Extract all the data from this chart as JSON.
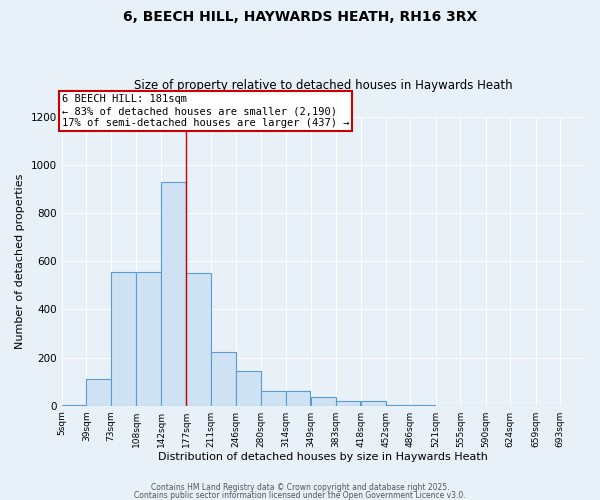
{
  "title1": "6, BEECH HILL, HAYWARDS HEATH, RH16 3RX",
  "title2": "Size of property relative to detached houses in Haywards Heath",
  "xlabel": "Distribution of detached houses by size in Haywards Heath",
  "ylabel": "Number of detached properties",
  "bar_color": "#cfe2f3",
  "bar_edge_color": "#5b9bd5",
  "bar_edge_width": 0.8,
  "bin_edges": [
    5,
    39,
    73,
    108,
    142,
    177,
    211,
    246,
    280,
    314,
    349,
    383,
    418,
    452,
    486,
    521,
    555,
    590,
    624,
    659,
    693
  ],
  "bar_heights": [
    5,
    110,
    555,
    555,
    930,
    550,
    225,
    145,
    60,
    60,
    35,
    20,
    20,
    5,
    2,
    0,
    0,
    0,
    0,
    0
  ],
  "red_line_x": 177,
  "annotation_title": "6 BEECH HILL: 181sqm",
  "annotation_line1": "← 83% of detached houses are smaller (2,190)",
  "annotation_line2": "17% of semi-detached houses are larger (437) →",
  "annotation_box_color": "#cc0000",
  "ylim": [
    0,
    1200
  ],
  "yticks": [
    0,
    200,
    400,
    600,
    800,
    1000,
    1200
  ],
  "xtick_labels": [
    "5sqm",
    "39sqm",
    "73sqm",
    "108sqm",
    "142sqm",
    "177sqm",
    "211sqm",
    "246sqm",
    "280sqm",
    "314sqm",
    "349sqm",
    "383sqm",
    "418sqm",
    "452sqm",
    "486sqm",
    "521sqm",
    "555sqm",
    "590sqm",
    "624sqm",
    "659sqm",
    "693sqm"
  ],
  "background_color": "#e8f0f8",
  "grid_color": "#ffffff",
  "footer1": "Contains HM Land Registry data © Crown copyright and database right 2025.",
  "footer2": "Contains public sector information licensed under the Open Government Licence v3.0."
}
